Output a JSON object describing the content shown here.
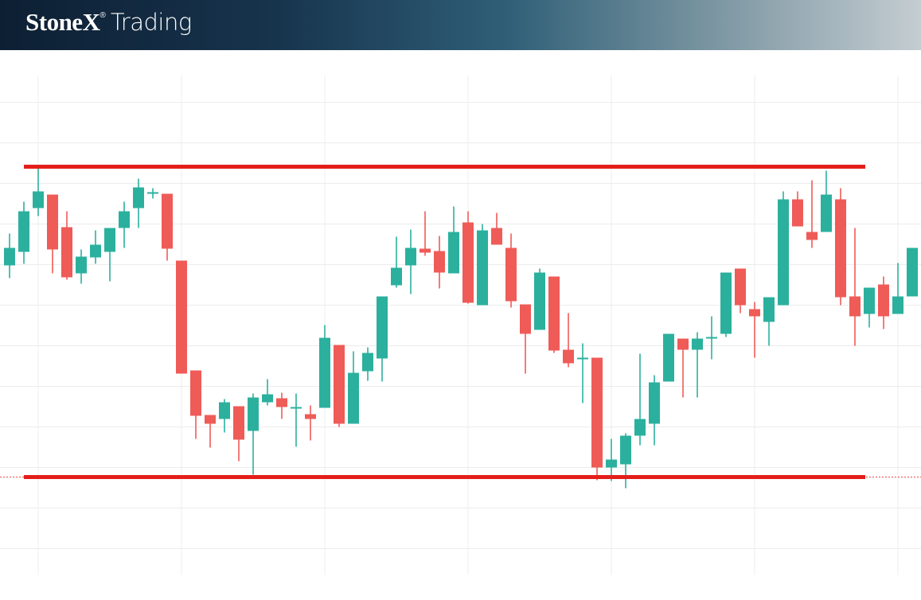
{
  "header": {
    "brand": "StoneX",
    "registered": "®",
    "product": "Trading"
  },
  "chart_data": {
    "type": "candlestick",
    "ylim": [
      0,
      628
    ],
    "up_color": "#2bb09e",
    "down_color": "#ef5b57",
    "grid": true,
    "open": [
      389,
      406,
      461,
      478,
      437,
      379,
      399,
      406,
      436,
      461,
      479,
      479,
      395,
      257,
      201,
      196,
      212,
      181,
      217,
      222,
      209,
      202,
      210,
      289,
      190,
      256,
      272,
      364,
      389,
      410,
      407,
      379,
      443,
      339,
      436,
      411,
      340,
      308,
      375,
      283,
      271,
      273,
      135,
      139,
      175,
      190,
      243,
      297,
      283,
      297,
      303,
      385,
      334,
      318,
      339,
      472,
      431,
      431,
      472,
      350,
      328,
      365,
      328,
      350
    ],
    "high": [
      429,
      469,
      513,
      478,
      457,
      409,
      433,
      436,
      469,
      498,
      486,
      479,
      395,
      257,
      201,
      221,
      212,
      228,
      246,
      229,
      228,
      213,
      314,
      289,
      281,
      286,
      350,
      425,
      434,
      457,
      426,
      463,
      457,
      441,
      455,
      429,
      340,
      385,
      375,
      329,
      291,
      273,
      171,
      178,
      278,
      251,
      303,
      297,
      305,
      325,
      380,
      385,
      343,
      349,
      482,
      482,
      496,
      508,
      486,
      436,
      361,
      375,
      392,
      411
    ],
    "low": [
      373,
      391,
      451,
      379,
      371,
      366,
      391,
      369,
      411,
      436,
      473,
      395,
      253,
      171,
      160,
      179,
      143,
      126,
      213,
      196,
      161,
      169,
      210,
      186,
      190,
      244,
      243,
      361,
      353,
      401,
      360,
      379,
      341,
      339,
      415,
      336,
      253,
      308,
      279,
      261,
      216,
      119,
      118,
      109,
      163,
      163,
      243,
      223,
      223,
      271,
      299,
      329,
      273,
      288,
      339,
      438,
      411,
      431,
      339,
      288,
      311,
      309,
      328,
      350
    ],
    "close": [
      411,
      457,
      482,
      409,
      374,
      400,
      415,
      436,
      457,
      487,
      481,
      410,
      253,
      200,
      190,
      217,
      170,
      223,
      227,
      211,
      211,
      196,
      298,
      190,
      254,
      279,
      350,
      386,
      411,
      405,
      380,
      431,
      342,
      433,
      415,
      344,
      303,
      380,
      282,
      266,
      273,
      135,
      145,
      175,
      196,
      242,
      303,
      283,
      297,
      299,
      380,
      339,
      325,
      349,
      472,
      438,
      421,
      478,
      349,
      325,
      361,
      325,
      350,
      411
    ],
    "levels": [
      {
        "value": 513,
        "color": "#e41e1a"
      },
      {
        "value": 123,
        "color": "#e41e1a"
      }
    ]
  }
}
